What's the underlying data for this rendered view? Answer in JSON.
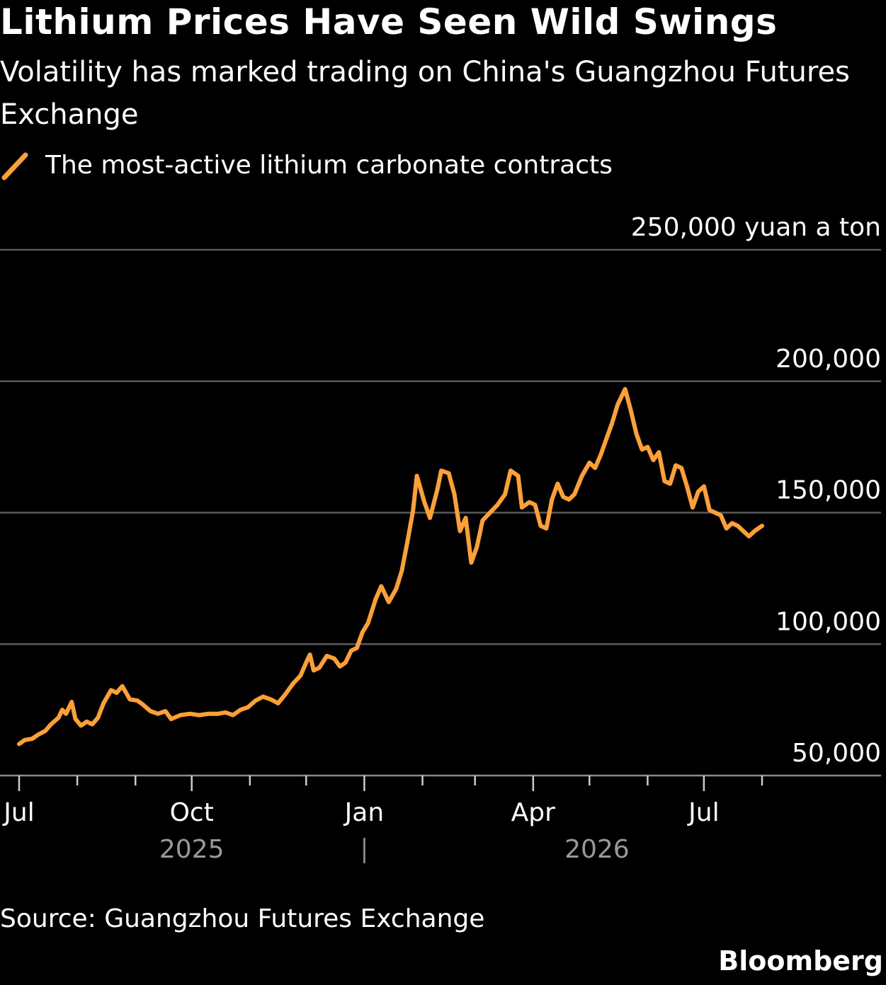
{
  "title": "Lithium Prices Have Seen Wild Swings",
  "subtitle": "Volatility has marked trading on China's Guangzhou Futures Exchange",
  "legend": {
    "label": "The most-active lithium carbonate contracts",
    "color": "#FFA033"
  },
  "source": "Source: Guangzhou Futures Exchange",
  "logo": "Bloomberg",
  "chart_data": {
    "type": "line",
    "title": "Lithium Prices Have Seen Wild Swings",
    "ylabel": "250,000 yuan a ton",
    "ylim": [
      50000,
      250000
    ],
    "yticks": [
      {
        "value": 250000,
        "label": "250,000 yuan a ton"
      },
      {
        "value": 200000,
        "label": "200,000"
      },
      {
        "value": 150000,
        "label": "150,000"
      },
      {
        "value": 100000,
        "label": "100,000"
      },
      {
        "value": 50000,
        "label": "50,000"
      }
    ],
    "xlim": [
      "2025-07-01",
      "2026-08-20"
    ],
    "xticks": [
      {
        "date": "2025-07-01",
        "label": "Jul",
        "major": true
      },
      {
        "date": "2025-08-01",
        "label": "",
        "major": false
      },
      {
        "date": "2025-09-01",
        "label": "",
        "major": false
      },
      {
        "date": "2025-10-01",
        "label": "Oct",
        "major": true
      },
      {
        "date": "2025-11-01",
        "label": "",
        "major": false
      },
      {
        "date": "2025-12-01",
        "label": "",
        "major": false
      },
      {
        "date": "2026-01-01",
        "label": "Jan",
        "major": true
      },
      {
        "date": "2026-02-01",
        "label": "",
        "major": false
      },
      {
        "date": "2026-03-01",
        "label": "",
        "major": false
      },
      {
        "date": "2026-04-01",
        "label": "Apr",
        "major": true
      },
      {
        "date": "2026-05-01",
        "label": "",
        "major": false
      },
      {
        "date": "2026-06-01",
        "label": "",
        "major": false
      },
      {
        "date": "2026-07-01",
        "label": "Jul",
        "major": true
      },
      {
        "date": "2026-08-01",
        "label": "",
        "major": false
      }
    ],
    "year_labels": [
      {
        "date": "2025-10-01",
        "label": "2025"
      },
      {
        "date": "2026-05-05",
        "label": "2026"
      }
    ],
    "year_divider": "2026-01-01",
    "grid": true,
    "legend_position": "top-left",
    "series": [
      {
        "name": "The most-active lithium carbonate contracts",
        "color": "#FFA033",
        "points": [
          [
            "2025-07-01",
            62000
          ],
          [
            "2025-07-04",
            63500
          ],
          [
            "2025-07-08",
            64000
          ],
          [
            "2025-07-11",
            65500
          ],
          [
            "2025-07-15",
            67000
          ],
          [
            "2025-07-18",
            69500
          ],
          [
            "2025-07-22",
            72000
          ],
          [
            "2025-07-24",
            75000
          ],
          [
            "2025-07-26",
            73500
          ],
          [
            "2025-07-29",
            78000
          ],
          [
            "2025-07-31",
            71500
          ],
          [
            "2025-08-03",
            69000
          ],
          [
            "2025-08-06",
            70500
          ],
          [
            "2025-08-09",
            69500
          ],
          [
            "2025-08-12",
            72000
          ],
          [
            "2025-08-15",
            77500
          ],
          [
            "2025-08-19",
            82500
          ],
          [
            "2025-08-22",
            81500
          ],
          [
            "2025-08-25",
            84000
          ],
          [
            "2025-08-29",
            79000
          ],
          [
            "2025-09-02",
            78500
          ],
          [
            "2025-09-05",
            77000
          ],
          [
            "2025-09-09",
            74500
          ],
          [
            "2025-09-13",
            73500
          ],
          [
            "2025-09-17",
            74500
          ],
          [
            "2025-09-20",
            71500
          ],
          [
            "2025-09-25",
            73000
          ],
          [
            "2025-09-30",
            73500
          ],
          [
            "2025-10-05",
            73000
          ],
          [
            "2025-10-10",
            73500
          ],
          [
            "2025-10-15",
            73500
          ],
          [
            "2025-10-19",
            74000
          ],
          [
            "2025-10-23",
            73000
          ],
          [
            "2025-10-27",
            75000
          ],
          [
            "2025-10-31",
            76000
          ],
          [
            "2025-11-04",
            78500
          ],
          [
            "2025-11-08",
            80000
          ],
          [
            "2025-11-12",
            79000
          ],
          [
            "2025-11-16",
            77500
          ],
          [
            "2025-11-20",
            81000
          ],
          [
            "2025-11-24",
            85000
          ],
          [
            "2025-11-28",
            88000
          ],
          [
            "2025-12-01",
            93000
          ],
          [
            "2025-12-03",
            96000
          ],
          [
            "2025-12-05",
            90000
          ],
          [
            "2025-12-08",
            91000
          ],
          [
            "2025-12-12",
            95500
          ],
          [
            "2025-12-16",
            94500
          ],
          [
            "2025-12-19",
            91500
          ],
          [
            "2025-12-22",
            93000
          ],
          [
            "2025-12-25",
            97500
          ],
          [
            "2025-12-28",
            98500
          ],
          [
            "2025-12-31",
            104500
          ],
          [
            "2026-01-03",
            108000
          ],
          [
            "2026-01-07",
            117000
          ],
          [
            "2026-01-10",
            122000
          ],
          [
            "2026-01-14",
            116000
          ],
          [
            "2026-01-18",
            121000
          ],
          [
            "2026-01-21",
            128000
          ],
          [
            "2026-01-24",
            139000
          ],
          [
            "2026-01-27",
            151000
          ],
          [
            "2026-01-29",
            164000
          ],
          [
            "2026-02-02",
            154000
          ],
          [
            "2026-02-05",
            148000
          ],
          [
            "2026-02-09",
            159000
          ],
          [
            "2026-02-11",
            166000
          ],
          [
            "2026-02-15",
            165000
          ],
          [
            "2026-02-18",
            157000
          ],
          [
            "2026-02-21",
            143000
          ],
          [
            "2026-02-24",
            148000
          ],
          [
            "2026-02-27",
            131000
          ],
          [
            "2026-03-02",
            137000
          ],
          [
            "2026-03-05",
            147000
          ],
          [
            "2026-03-09",
            150000
          ],
          [
            "2026-03-13",
            153000
          ],
          [
            "2026-03-17",
            157000
          ],
          [
            "2026-03-20",
            166000
          ],
          [
            "2026-03-24",
            164000
          ],
          [
            "2026-03-26",
            152000
          ],
          [
            "2026-03-30",
            154000
          ],
          [
            "2026-04-02",
            153000
          ],
          [
            "2026-04-05",
            145000
          ],
          [
            "2026-04-08",
            144000
          ],
          [
            "2026-04-11",
            155000
          ],
          [
            "2026-04-14",
            161000
          ],
          [
            "2026-04-17",
            156000
          ],
          [
            "2026-04-20",
            155000
          ],
          [
            "2026-04-23",
            157000
          ],
          [
            "2026-04-27",
            164000
          ],
          [
            "2026-05-01",
            169000
          ],
          [
            "2026-05-04",
            167000
          ],
          [
            "2026-05-07",
            172000
          ],
          [
            "2026-05-10",
            178000
          ],
          [
            "2026-05-13",
            184000
          ],
          [
            "2026-05-16",
            191000
          ],
          [
            "2026-05-20",
            197000
          ],
          [
            "2026-05-23",
            189000
          ],
          [
            "2026-05-26",
            180000
          ],
          [
            "2026-05-29",
            174000
          ],
          [
            "2026-06-01",
            175000
          ],
          [
            "2026-06-04",
            170000
          ],
          [
            "2026-06-07",
            173000
          ],
          [
            "2026-06-10",
            162000
          ],
          [
            "2026-06-13",
            161000
          ],
          [
            "2026-06-16",
            168000
          ],
          [
            "2026-06-19",
            167000
          ],
          [
            "2026-06-22",
            160000
          ],
          [
            "2026-06-25",
            152000
          ],
          [
            "2026-06-28",
            158000
          ],
          [
            "2026-07-01",
            160000
          ],
          [
            "2026-07-04",
            151000
          ],
          [
            "2026-07-07",
            150000
          ],
          [
            "2026-07-10",
            149000
          ],
          [
            "2026-07-13",
            144000
          ],
          [
            "2026-07-16",
            146000
          ],
          [
            "2026-07-19",
            145000
          ],
          [
            "2026-07-22",
            143000
          ],
          [
            "2026-07-25",
            141000
          ],
          [
            "2026-07-28",
            143000
          ],
          [
            "2026-08-01",
            145000
          ]
        ]
      }
    ]
  }
}
